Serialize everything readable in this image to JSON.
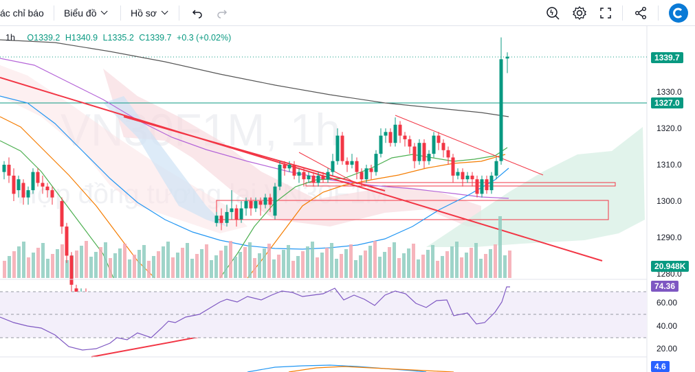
{
  "toolbar": {
    "indicators_label": "ác chỉ báo",
    "chart_label": "Biểu đồ",
    "profile_label": "Hồ sơ"
  },
  "header": {
    "interval": "1h",
    "open": "O1339.2",
    "high": "H1340.9",
    "low": "L1335.2",
    "close": "C1339.7",
    "change": "+0.3 (+0.02%)"
  },
  "price_axis": {
    "ticks": [
      "1330.0",
      "1320.0",
      "1310.0",
      "1300.0",
      "1290.0",
      "1280.0"
    ],
    "last_price": "1339.7",
    "level_price": "1327.0",
    "volume_label": "20.948K"
  },
  "rsi_axis": {
    "ticks": [
      "60.00",
      "40.00",
      "20.00"
    ],
    "value": "74.36"
  },
  "macd_axis": {
    "value": "4.6"
  },
  "watermark": {
    "symbol": "VN30F1M, 1h",
    "description": "Hợp đồng tương lai VN30F1M"
  },
  "colors": {
    "up": "#089981",
    "down": "#f23645",
    "rsi": "#7e57c2",
    "accent": "#2962ff"
  }
}
